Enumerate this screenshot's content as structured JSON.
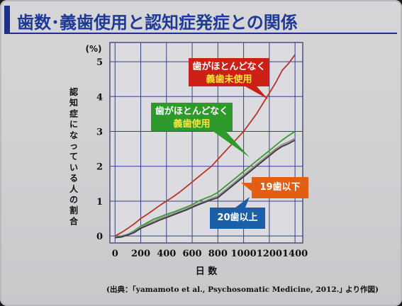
{
  "slide": {
    "title": "歯数･義歯使用と認知症発症との関係",
    "source": "(出典：｢yamamoto et al., Psychosomatic Medicine, 2012.｣ より作図)"
  },
  "chart_data": {
    "type": "line",
    "xlabel": "日 数",
    "ylabel": "認知症になっている人の割合",
    "yunit": "(%)",
    "xlim": [
      -40,
      1460
    ],
    "ylim": [
      -0.2,
      5.55
    ],
    "xticks": [
      0,
      200,
      400,
      600,
      800,
      1000,
      1200,
      1400
    ],
    "yticks": [
      0,
      1,
      2,
      3,
      4,
      5
    ],
    "grid": true,
    "series": [
      {
        "name": "歯がほとんどなく 義歯未使用",
        "color": "#b8342a",
        "x": [
          0,
          50,
          100,
          150,
          200,
          250,
          300,
          350,
          400,
          450,
          500,
          550,
          600,
          650,
          700,
          750,
          800,
          850,
          900,
          950,
          1000,
          1050,
          1100,
          1150,
          1200,
          1250,
          1300,
          1350,
          1400
        ],
        "values": [
          0.0,
          0.1,
          0.22,
          0.35,
          0.5,
          0.62,
          0.75,
          0.88,
          1.0,
          1.12,
          1.25,
          1.4,
          1.55,
          1.7,
          1.85,
          2.0,
          2.2,
          2.4,
          2.6,
          2.8,
          3.0,
          3.25,
          3.5,
          3.8,
          4.1,
          4.4,
          4.75,
          4.95,
          5.2
        ]
      },
      {
        "name": "歯がほとんどなく 義歯使用",
        "color": "#3f9a3a",
        "x": [
          0,
          50,
          100,
          150,
          200,
          250,
          300,
          350,
          400,
          450,
          500,
          550,
          600,
          650,
          700,
          750,
          800,
          850,
          900,
          950,
          1000,
          1050,
          1100,
          1150,
          1200,
          1250,
          1300,
          1350,
          1400
        ],
        "values": [
          -0.05,
          0.0,
          0.05,
          0.15,
          0.28,
          0.38,
          0.48,
          0.55,
          0.62,
          0.68,
          0.75,
          0.82,
          0.9,
          1.0,
          1.08,
          1.15,
          1.25,
          1.4,
          1.55,
          1.7,
          1.85,
          2.0,
          2.15,
          2.3,
          2.45,
          2.6,
          2.75,
          2.88,
          3.0
        ]
      },
      {
        "name": "19歯以下",
        "color": "#9a8f88",
        "x": [
          0,
          50,
          100,
          150,
          200,
          250,
          300,
          350,
          400,
          450,
          500,
          550,
          600,
          650,
          700,
          750,
          800,
          850,
          900,
          950,
          1000,
          1050,
          1100,
          1150,
          1200,
          1250,
          1300,
          1350,
          1400
        ],
        "values": [
          -0.05,
          -0.02,
          0.05,
          0.12,
          0.25,
          0.33,
          0.42,
          0.5,
          0.57,
          0.63,
          0.7,
          0.77,
          0.85,
          0.93,
          1.0,
          1.08,
          1.15,
          1.3,
          1.45,
          1.6,
          1.75,
          1.9,
          2.05,
          2.2,
          2.35,
          2.5,
          2.62,
          2.7,
          2.8
        ]
      },
      {
        "name": "20歯以上",
        "color": "#3b3b48",
        "x": [
          0,
          50,
          100,
          150,
          200,
          250,
          300,
          350,
          400,
          450,
          500,
          550,
          600,
          650,
          700,
          750,
          800,
          850,
          900,
          950,
          1000,
          1050,
          1100,
          1150,
          1200,
          1250,
          1300,
          1350,
          1400
        ],
        "values": [
          -0.05,
          -0.03,
          0.03,
          0.1,
          0.22,
          0.3,
          0.38,
          0.46,
          0.53,
          0.6,
          0.67,
          0.74,
          0.82,
          0.9,
          0.97,
          1.04,
          1.1,
          1.25,
          1.4,
          1.55,
          1.7,
          1.85,
          2.0,
          2.15,
          2.3,
          2.45,
          2.57,
          2.65,
          2.75
        ]
      }
    ],
    "callouts": [
      {
        "line1": "歯がほとんどなく",
        "line2": "義歯未使用",
        "bg": "#cc1f16",
        "line1_color": "#ffffff",
        "line2_color": "#ffe23a"
      },
      {
        "line1": "歯がほとんどなく",
        "line2": "義歯使用",
        "bg": "#2e9a2c",
        "line1_color": "#ffffff",
        "line2_color": "#ffe23a"
      },
      {
        "line1": "19歯以下",
        "line2": "",
        "bg": "#e25e12",
        "line1_color": "#ffffff",
        "line2_color": "#ffffff"
      },
      {
        "line1": "20歯以上",
        "line2": "",
        "bg": "#1a5fa8",
        "line1_color": "#ffffff",
        "line2_color": "#ffffff"
      }
    ]
  }
}
